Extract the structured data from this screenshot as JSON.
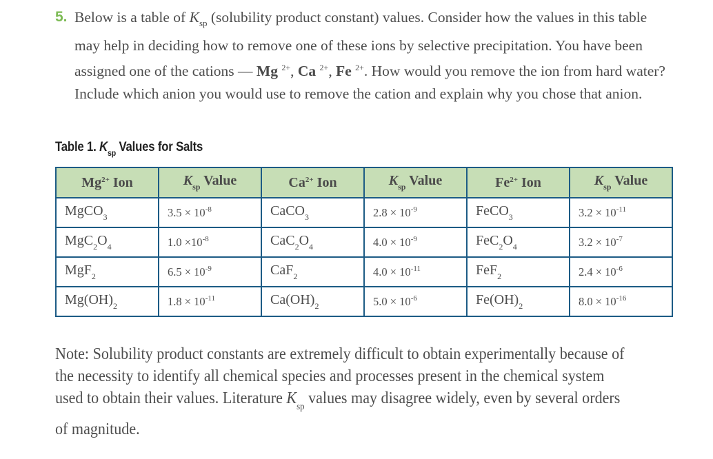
{
  "question": {
    "number": "5.",
    "text_parts": {
      "p1": "Below is a table of ",
      "k_symbol": "K",
      "k_sub": "sp",
      "p2": " (solubility product constant) values. Consider how the values in this table may help in deciding how to remove one of these ions by selective precipitation. You have been assigned one of the cations — ",
      "cation1": "Mg",
      "cation2": "Ca",
      "cation3": "Fe",
      "charge": "2+",
      "sep": ", ",
      "p3": ". How would you remove the ion from hard water? Include which anion you would use to remove the cation and explain why you chose that anion."
    }
  },
  "table": {
    "caption_prefix": "Table 1. ",
    "caption_k": "K",
    "caption_sub": "sp",
    "caption_suffix": " Values for Salts",
    "headers": [
      {
        "ion": "Mg",
        "charge": "2+",
        "label": " Ion"
      },
      {
        "k": "K",
        "sub": "sp",
        "label": " Value"
      },
      {
        "ion": "Ca",
        "charge": "2+",
        "label": " Ion"
      },
      {
        "k": "K",
        "sub": "sp",
        "label": " Value"
      },
      {
        "ion": "Fe",
        "charge": "2+",
        "label": " Ion"
      },
      {
        "k": "K",
        "sub": "sp",
        "label": " Value"
      }
    ],
    "rows": [
      {
        "mg_salt": {
          "a": "MgCO",
          "s1": "3",
          "b": "",
          "s2": "",
          "c": ""
        },
        "mg_ksp": {
          "mant": "3.5 × 10",
          "exp": "-8"
        },
        "ca_salt": {
          "a": "CaCO",
          "s1": "3",
          "b": "",
          "s2": "",
          "c": ""
        },
        "ca_ksp": {
          "mant": "2.8 × 10",
          "exp": "-9"
        },
        "fe_salt": {
          "a": "FeCO",
          "s1": "3",
          "b": "",
          "s2": "",
          "c": ""
        },
        "fe_ksp": {
          "mant": "3.2 × 10",
          "exp": "-11"
        }
      },
      {
        "mg_salt": {
          "a": "MgC",
          "s1": "2",
          "b": "O",
          "s2": "4",
          "c": ""
        },
        "mg_ksp": {
          "mant": "1.0 ×10",
          "exp": "-8"
        },
        "ca_salt": {
          "a": "CaC",
          "s1": "2",
          "b": "O",
          "s2": "4",
          "c": ""
        },
        "ca_ksp": {
          "mant": "4.0 × 10",
          "exp": "-9"
        },
        "fe_salt": {
          "a": "FeC",
          "s1": "2",
          "b": "O",
          "s2": "4",
          "c": ""
        },
        "fe_ksp": {
          "mant": "3.2 × 10",
          "exp": "-7"
        }
      },
      {
        "mg_salt": {
          "a": "MgF",
          "s1": "2",
          "b": "",
          "s2": "",
          "c": ""
        },
        "mg_ksp": {
          "mant": "6.5 × 10",
          "exp": "-9"
        },
        "ca_salt": {
          "a": "CaF",
          "s1": "2",
          "b": "",
          "s2": "",
          "c": ""
        },
        "ca_ksp": {
          "mant": "4.0 × 10",
          "exp": "-11"
        },
        "fe_salt": {
          "a": "FeF",
          "s1": "2",
          "b": "",
          "s2": "",
          "c": ""
        },
        "fe_ksp": {
          "mant": "2.4 × 10",
          "exp": "-6"
        }
      },
      {
        "mg_salt": {
          "a": "Mg(OH)",
          "s1": "2",
          "b": "",
          "s2": "",
          "c": ""
        },
        "mg_ksp": {
          "mant": "1.8 × 10",
          "exp": "-11"
        },
        "ca_salt": {
          "a": "Ca(OH)",
          "s1": "2",
          "b": "",
          "s2": "",
          "c": ""
        },
        "ca_ksp": {
          "mant": "5.0 × 10",
          "exp": "-6"
        },
        "fe_salt": {
          "a": "Fe(OH)",
          "s1": "2",
          "b": "",
          "s2": "",
          "c": ""
        },
        "fe_ksp": {
          "mant": "8.0 × 10",
          "exp": "-16"
        }
      }
    ]
  },
  "note": {
    "p1": "Note: Solubility product constants are extremely difficult to obtain experimentally because of the necessity to identify all chemical species and processes present in the chemical system used to obtain their values. Literature ",
    "k": "K",
    "sub": "sp",
    "p2": " values may disagree widely, even by several orders of magnitude."
  },
  "colors": {
    "question_number": "#7dbb55",
    "table_border": "#1c5b85",
    "header_bg": "#c7deb6",
    "text": "#4d4d4d"
  }
}
